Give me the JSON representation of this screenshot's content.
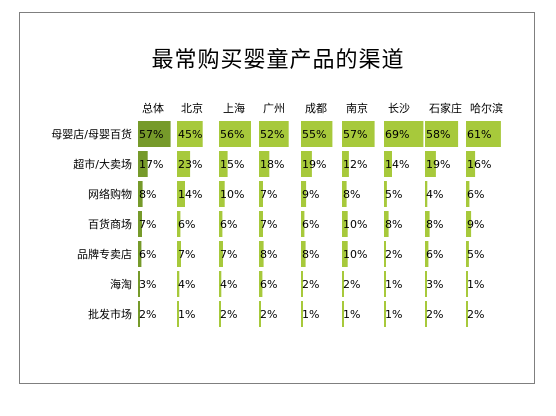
{
  "title": "最常购买婴童产品的渠道",
  "colors": {
    "bar_light": "#a7c93b",
    "bar_dark": "#769a2a",
    "border": "#7f7f7f",
    "text": "#000000"
  },
  "chart_data": {
    "type": "table",
    "title": "最常购买婴童产品的渠道",
    "columns": [
      "总体",
      "北京",
      "上海",
      "广州",
      "成都",
      "南京",
      "长沙",
      "石家庄",
      "哈尔滨"
    ],
    "rows": [
      "母婴店/母婴百货",
      "超市/大卖场",
      "网络购物",
      "百货商场",
      "品牌专卖店",
      "海淘",
      "批发市场"
    ],
    "values": [
      [
        57,
        45,
        56,
        52,
        55,
        57,
        69,
        58,
        61
      ],
      [
        17,
        23,
        15,
        18,
        19,
        12,
        14,
        19,
        16
      ],
      [
        8,
        14,
        10,
        7,
        9,
        8,
        5,
        4,
        6
      ],
      [
        7,
        6,
        6,
        7,
        6,
        10,
        8,
        8,
        9
      ],
      [
        6,
        7,
        7,
        8,
        8,
        10,
        2,
        6,
        5
      ],
      [
        3,
        4,
        4,
        6,
        2,
        2,
        1,
        3,
        1
      ],
      [
        2,
        1,
        2,
        2,
        1,
        1,
        1,
        2,
        2
      ]
    ],
    "labels": [
      [
        "57%",
        "45%",
        "56%",
        "52%",
        "55%",
        "57%",
        "69%",
        "58%",
        "61%"
      ],
      [
        "17%",
        "23%",
        "15%",
        "18%",
        "19%",
        "12%",
        "14%",
        "19%",
        "16%"
      ],
      [
        "8%",
        "14%",
        "10%",
        "7%",
        "9%",
        "8%",
        "5%",
        "4%",
        "6%"
      ],
      [
        "7%",
        "6%",
        "6%",
        "7%",
        "6%",
        "10%",
        "8%",
        "8%",
        "9%"
      ],
      [
        "6%",
        "7%",
        "7%",
        "8%",
        "8%",
        "10%",
        "2%",
        "6%",
        "5%"
      ],
      [
        "3%",
        "4%",
        "4%",
        "6%",
        "2%",
        "2%",
        "1%",
        "3%",
        "1%"
      ],
      [
        "2%",
        "1%",
        "2%",
        "2%",
        "1%",
        "1%",
        "1%",
        "2%",
        "2%"
      ]
    ]
  }
}
